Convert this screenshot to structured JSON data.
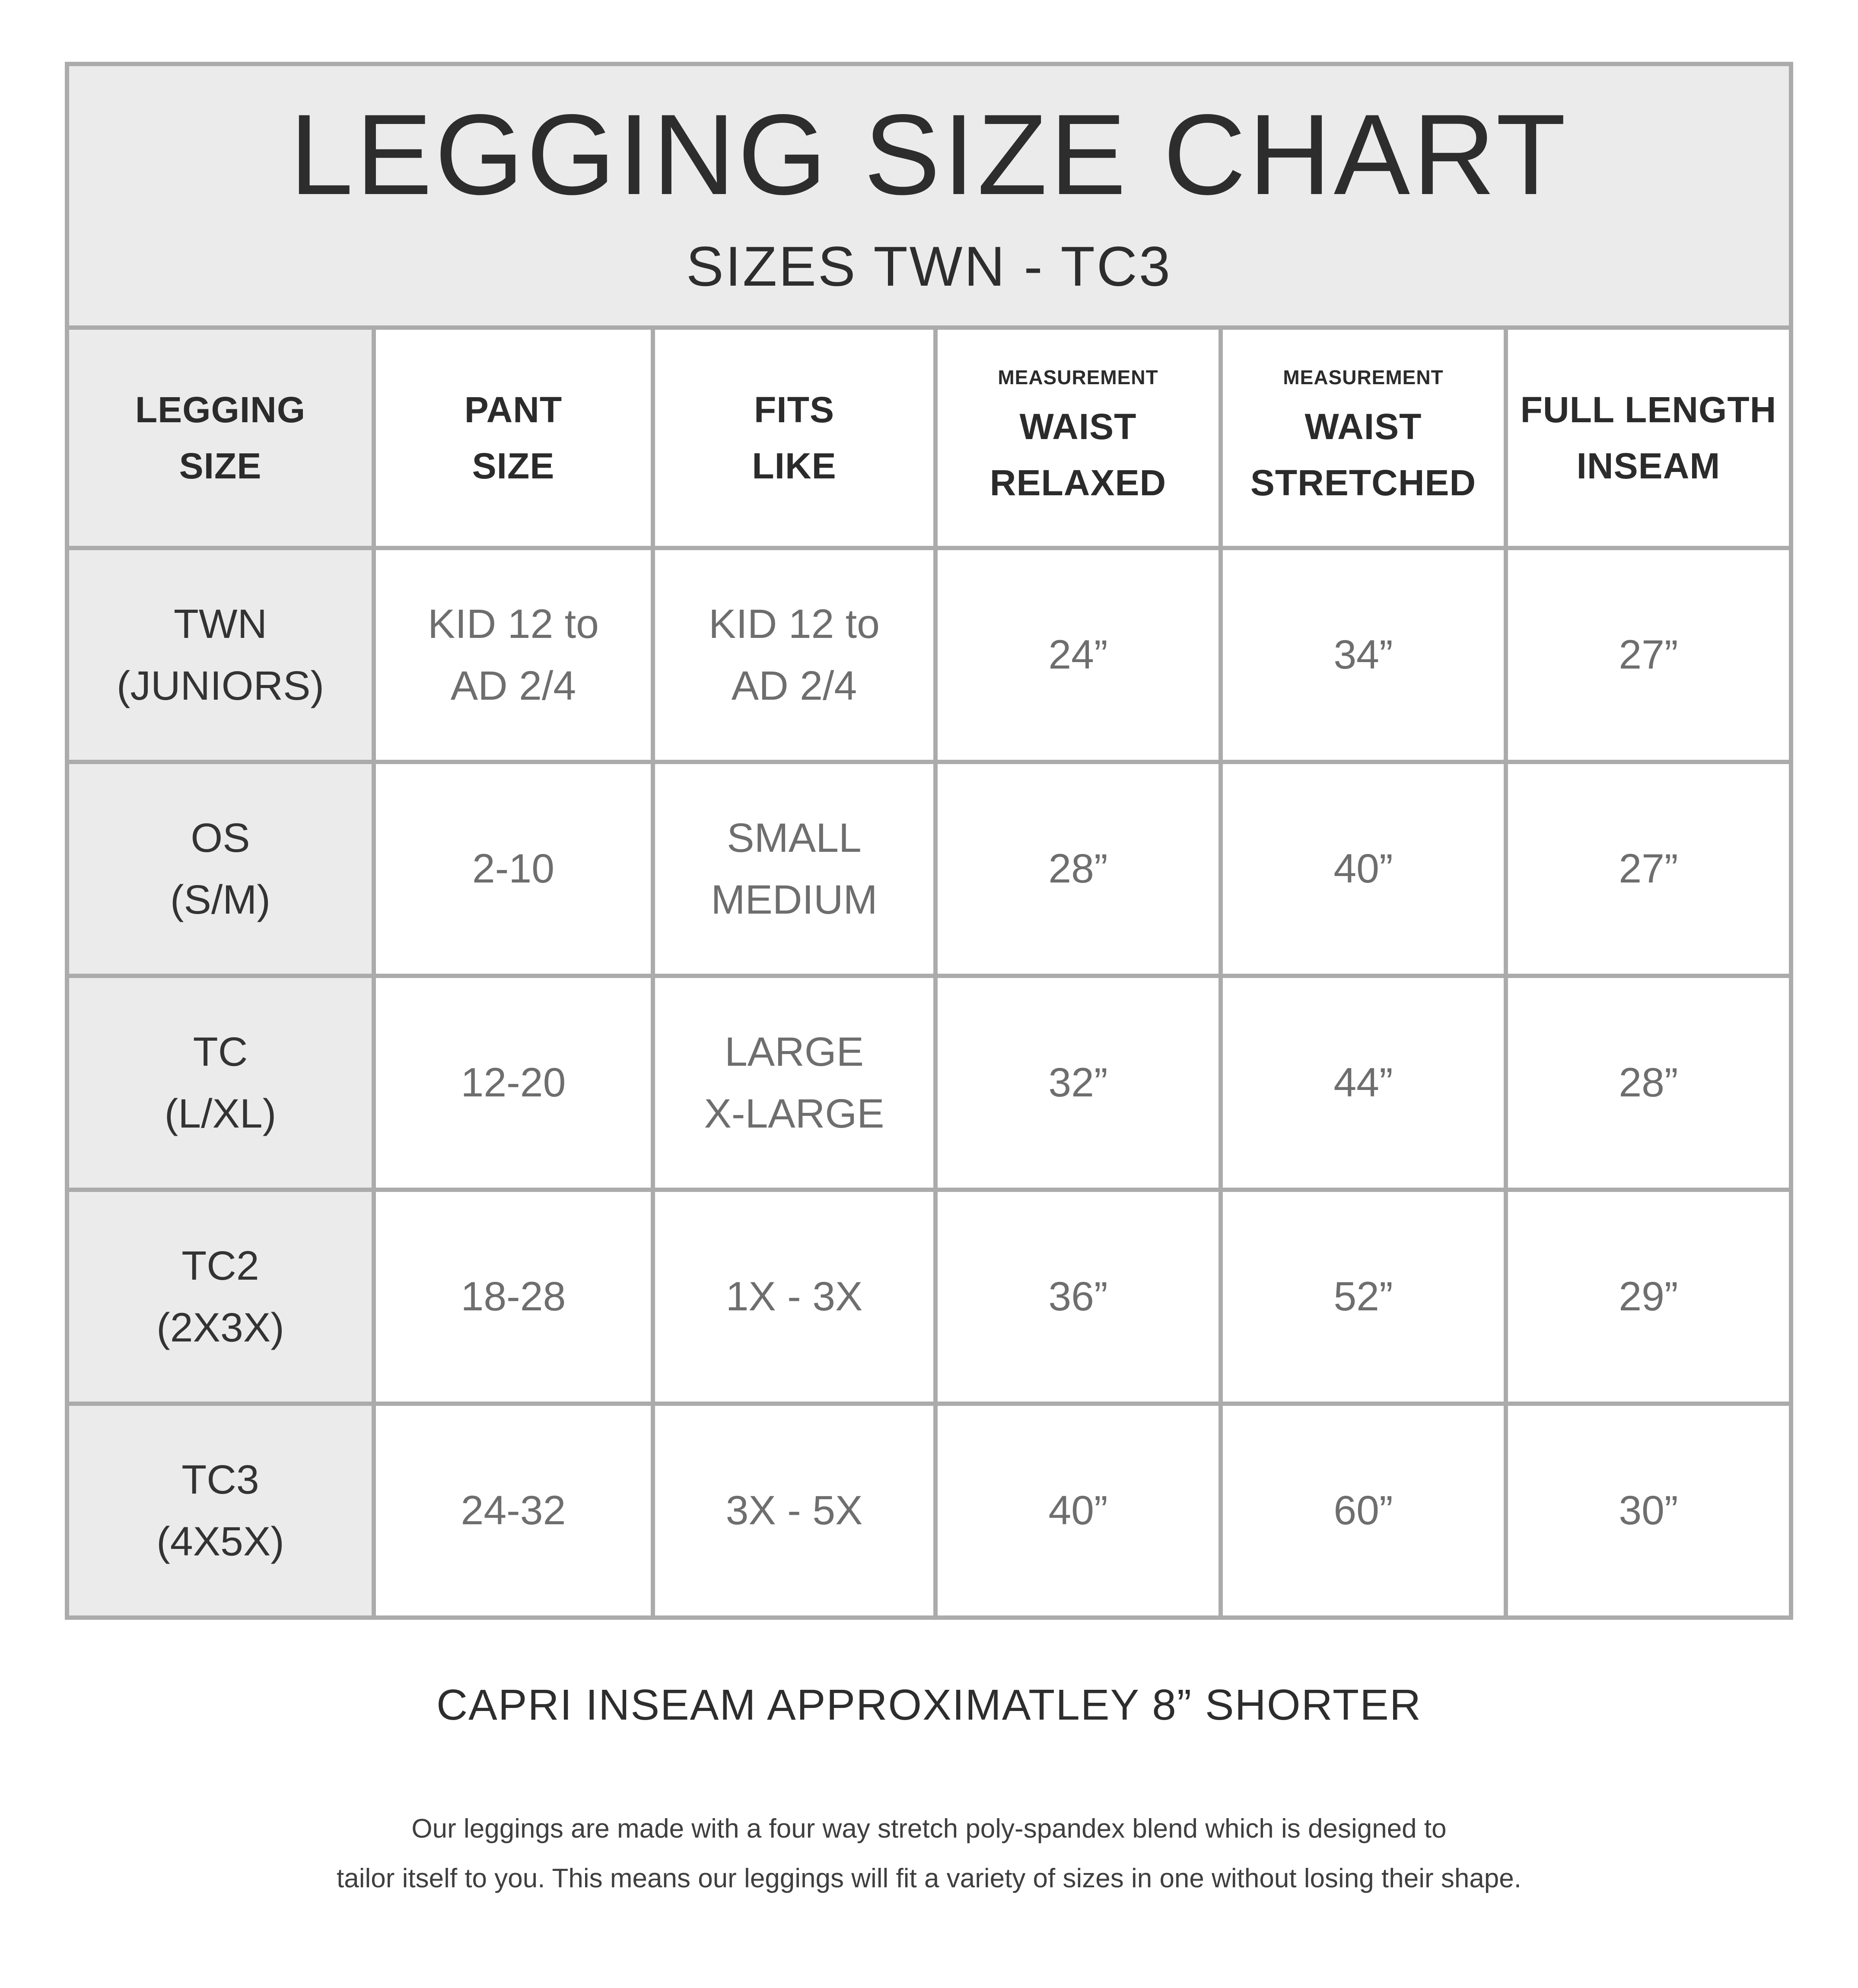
{
  "colors": {
    "border": "#ababab",
    "panel": "#ebebeb",
    "text_dark": "#2d2d2d",
    "text_gray": "#6e6e6e"
  },
  "table": {
    "title": "LEGGING SIZE CHART",
    "subtitle": "SIZES TWN - TC3",
    "header": {
      "columns": [
        {
          "small": "",
          "lines": [
            "LEGGING",
            "SIZE"
          ]
        },
        {
          "small": "",
          "lines": [
            "PANT",
            "SIZE"
          ]
        },
        {
          "small": "",
          "lines": [
            "FITS",
            "LIKE"
          ]
        },
        {
          "small": "MEASUREMENT",
          "lines": [
            "WAIST",
            "RELAXED"
          ]
        },
        {
          "small": "MEASUREMENT",
          "lines": [
            "WAIST",
            "STRETCHED"
          ]
        },
        {
          "small": "",
          "lines": [
            "FULL LENGTH",
            "INSEAM"
          ]
        }
      ]
    },
    "rows": [
      {
        "cells": [
          [
            "TWN",
            "(JUNIORS)"
          ],
          [
            "KID 12 to",
            "AD 2/4"
          ],
          [
            "KID 12 to",
            "AD 2/4"
          ],
          [
            "24”"
          ],
          [
            "34”"
          ],
          [
            "27”"
          ]
        ]
      },
      {
        "cells": [
          [
            "OS",
            "(S/M)"
          ],
          [
            "2-10"
          ],
          [
            "SMALL",
            "MEDIUM"
          ],
          [
            "28”"
          ],
          [
            "40”"
          ],
          [
            "27”"
          ]
        ]
      },
      {
        "cells": [
          [
            "TC",
            "(L/XL)"
          ],
          [
            "12-20"
          ],
          [
            "LARGE",
            "X-LARGE"
          ],
          [
            "32”"
          ],
          [
            "44”"
          ],
          [
            "28”"
          ]
        ]
      },
      {
        "cells": [
          [
            "TC2",
            "(2X3X)"
          ],
          [
            "18-28"
          ],
          [
            "1X - 3X"
          ],
          [
            "36”"
          ],
          [
            "52”"
          ],
          [
            "29”"
          ]
        ]
      },
      {
        "cells": [
          [
            "TC3",
            "(4X5X)"
          ],
          [
            "24-32"
          ],
          [
            "3X - 5X"
          ],
          [
            "40”"
          ],
          [
            "60”"
          ],
          [
            "30”"
          ]
        ]
      }
    ]
  },
  "footer": {
    "capri_note": "CAPRI INSEAM APPROXIMATLEY 8” SHORTER",
    "description_lines": [
      "Our leggings are made with a four way stretch poly-spandex blend which is designed to",
      "tailor itself to you. This means our leggings will fit a variety of sizes in one without losing their shape."
    ]
  }
}
